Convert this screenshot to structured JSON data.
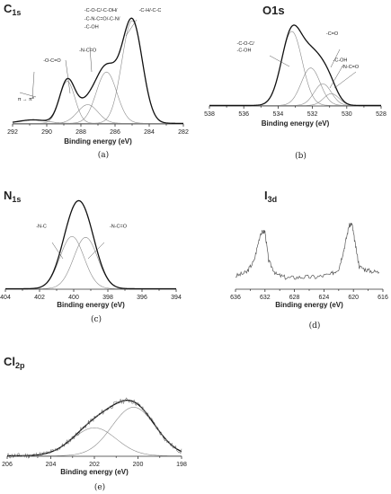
{
  "chart_data": [
    {
      "id": "a",
      "type": "line",
      "title_main": "C",
      "title_sub": "1s",
      "xlabel": "Binding energy (eV)",
      "panel_label": "(a)",
      "xlim": [
        292,
        282
      ],
      "x_ticks": [
        292,
        290,
        288,
        286,
        284,
        282
      ],
      "envelope": [
        [
          291.5,
          0.05
        ],
        [
          290.0,
          0.08
        ],
        [
          289.3,
          0.22
        ],
        [
          288.8,
          0.38
        ],
        [
          288.3,
          0.25
        ],
        [
          287.5,
          0.22
        ],
        [
          286.9,
          0.38
        ],
        [
          286.3,
          0.58
        ],
        [
          285.6,
          0.8
        ],
        [
          285.1,
          0.92
        ],
        [
          284.5,
          0.75
        ],
        [
          284.0,
          0.42
        ],
        [
          283.5,
          0.14
        ],
        [
          282.5,
          0.02
        ]
      ],
      "components": [
        {
          "center": 288.8,
          "height": 0.36,
          "sigma": 0.45
        },
        {
          "center": 287.6,
          "height": 0.16,
          "sigma": 0.6
        },
        {
          "center": 286.5,
          "height": 0.44,
          "sigma": 0.6
        },
        {
          "center": 285.0,
          "height": 0.88,
          "sigma": 0.6
        },
        {
          "center": 290.8,
          "height": 0.03,
          "sigma": 0.8
        }
      ],
      "annotations": [
        {
          "text": "π → π*",
          "x": 291.7,
          "y": 0.2
        },
        {
          "text": "-O-C=O",
          "x": 290.2,
          "y": 0.53
        },
        {
          "text": "-N-C=O",
          "x": 288.1,
          "y": 0.62
        },
        {
          "text": "-C-O-C/-C-OH/",
          "x": 287.8,
          "y": 0.96
        },
        {
          "text": "-C-N-C=O/-C-N/",
          "x": 287.8,
          "y": 0.89
        },
        {
          "text": "-C-OH",
          "x": 287.8,
          "y": 0.82
        },
        {
          "text": "-C-H/-C-C",
          "x": 284.6,
          "y": 0.96
        }
      ]
    },
    {
      "id": "b",
      "type": "line",
      "title_main": "O1s",
      "title_sub": "",
      "xlabel": "Binding energy (eV)",
      "panel_label": "(b)",
      "xlim": [
        538,
        528
      ],
      "x_ticks": [
        538,
        536,
        534,
        532,
        530,
        528
      ],
      "envelope": [
        [
          535.5,
          0.03
        ],
        [
          534.8,
          0.2
        ],
        [
          534.2,
          0.55
        ],
        [
          533.6,
          0.82
        ],
        [
          533.0,
          0.94
        ],
        [
          532.4,
          0.88
        ],
        [
          531.8,
          0.6
        ],
        [
          531.2,
          0.32
        ],
        [
          530.5,
          0.1
        ],
        [
          529.5,
          0.02
        ]
      ],
      "components": [
        {
          "center": 533.2,
          "height": 0.75,
          "sigma": 0.6
        },
        {
          "center": 532.1,
          "height": 0.38,
          "sigma": 0.55
        },
        {
          "center": 531.4,
          "height": 0.22,
          "sigma": 0.5
        },
        {
          "center": 530.9,
          "height": 0.12,
          "sigma": 0.45
        }
      ],
      "annotations": [
        {
          "text": "-C-O-C/",
          "x": 536.4,
          "y": 0.62
        },
        {
          "text": "-C-OH",
          "x": 536.4,
          "y": 0.55
        },
        {
          "text": "-C=O",
          "x": 531.2,
          "y": 0.72
        },
        {
          "text": "-C-OH",
          "x": 530.8,
          "y": 0.45
        },
        {
          "text": "-N-C=O",
          "x": 530.3,
          "y": 0.38
        }
      ]
    },
    {
      "id": "c",
      "type": "line",
      "title_main": "N",
      "title_sub": "1s",
      "xlabel": "Binding energy (eV)",
      "panel_label": "(c)",
      "xlim": [
        404,
        394
      ],
      "x_ticks": [
        404,
        402,
        400,
        398,
        396,
        394
      ],
      "envelope": [
        [
          402.5,
          0.04
        ],
        [
          401.5,
          0.28
        ],
        [
          400.8,
          0.66
        ],
        [
          400.2,
          0.88
        ],
        [
          399.7,
          0.9
        ],
        [
          399.2,
          0.8
        ],
        [
          398.5,
          0.5
        ],
        [
          397.8,
          0.2
        ],
        [
          397.0,
          0.04
        ]
      ],
      "components": [
        {
          "center": 400.1,
          "height": 0.56,
          "sigma": 0.7
        },
        {
          "center": 399.3,
          "height": 0.55,
          "sigma": 0.7
        }
      ],
      "annotations": [
        {
          "text": "-N-C",
          "x": 402.2,
          "y": 0.66
        },
        {
          "text": "-N-C=O",
          "x": 397.9,
          "y": 0.66
        }
      ]
    },
    {
      "id": "d",
      "type": "line",
      "title_main": "I",
      "title_sub": "3d",
      "xlabel": "Binding energy (eV)",
      "panel_label": "(d)",
      "xlim": [
        636,
        616
      ],
      "x_ticks": [
        636,
        632,
        628,
        624,
        620,
        616
      ],
      "series": [
        {
          "x": [
            636,
            634.5,
            633.5,
            632.6,
            632.0,
            631.5,
            630.5,
            629,
            627,
            625,
            623,
            622,
            621.3,
            620.6,
            620.2,
            619.8,
            619.2,
            618,
            616.5
          ],
          "y": [
            0.14,
            0.18,
            0.3,
            0.6,
            0.62,
            0.3,
            0.16,
            0.12,
            0.13,
            0.13,
            0.16,
            0.22,
            0.42,
            0.68,
            0.7,
            0.5,
            0.24,
            0.2,
            0.18
          ]
        }
      ]
    },
    {
      "id": "e",
      "type": "line",
      "title_main": "Cl",
      "title_sub": "2p",
      "xlabel": "Binding energy (eV)",
      "panel_label": "(e)",
      "xlim": [
        206,
        198
      ],
      "x_ticks": [
        206,
        204,
        202,
        200,
        198
      ],
      "envelope": [
        [
          206.0,
          0.1
        ],
        [
          205.0,
          0.14
        ],
        [
          204.0,
          0.2
        ],
        [
          203.0,
          0.35
        ],
        [
          202.0,
          0.5
        ],
        [
          201.0,
          0.6
        ],
        [
          200.5,
          0.62
        ],
        [
          199.8,
          0.55
        ],
        [
          199.0,
          0.38
        ],
        [
          198.2,
          0.18
        ]
      ],
      "components": [
        {
          "center": 202.0,
          "height": 0.3,
          "sigma": 1.0
        },
        {
          "center": 200.2,
          "height": 0.52,
          "sigma": 1.0
        }
      ],
      "noise_amplitude": 0.03
    }
  ]
}
